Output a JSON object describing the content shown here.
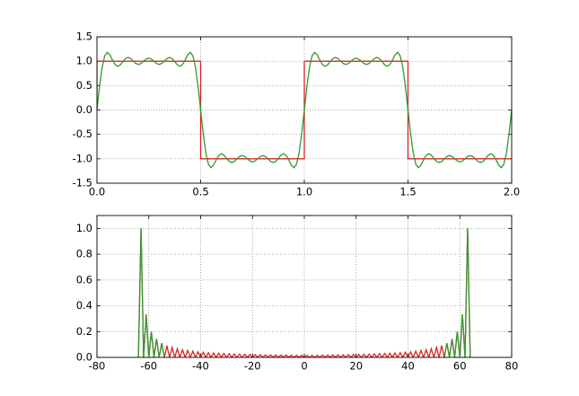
{
  "chart_data": [
    {
      "type": "line",
      "xlim": [
        0,
        2
      ],
      "ylim": [
        -1.5,
        1.5
      ],
      "xticks": [
        {
          "value": 0,
          "label": "0.0"
        },
        0.5,
        {
          "value": 1,
          "label": "1.0"
        },
        1.5,
        {
          "value": 2,
          "label": "2.0"
        }
      ],
      "yticks": [
        -1.5,
        {
          "value": -1,
          "label": "-1.0"
        },
        -0.5,
        {
          "value": 0,
          "label": "0.0"
        },
        0.5,
        {
          "value": 1,
          "label": "1.0"
        },
        1.5
      ],
      "grid": true,
      "series": [
        {
          "color": "#dd2222",
          "x": [
            0,
            0,
            0.5,
            0.5,
            1,
            1,
            1.5,
            1.5,
            2
          ],
          "values": [
            0,
            1,
            1,
            -1,
            -1,
            1,
            1,
            -1,
            -1
          ]
        },
        {
          "color": "#339933",
          "x": [
            0,
            0.0125,
            0.025,
            0.0375,
            0.05,
            0.0625,
            0.075,
            0.0875,
            0.1,
            0.1125,
            0.125,
            0.1375,
            0.15,
            0.1625,
            0.175,
            0.1875,
            0.2,
            0.2125,
            0.225,
            0.2375,
            0.25,
            0.2625,
            0.275,
            0.2875,
            0.3,
            0.3125,
            0.325,
            0.3375,
            0.35,
            0.3625,
            0.375,
            0.3875,
            0.4,
            0.4125,
            0.425,
            0.4375,
            0.45,
            0.4625,
            0.475,
            0.4875,
            0.5,
            0.5125,
            0.525,
            0.5375,
            0.55,
            0.5625,
            0.575,
            0.5875,
            0.6,
            0.6125,
            0.625,
            0.6375,
            0.65,
            0.6625,
            0.675,
            0.6875,
            0.7,
            0.7125,
            0.725,
            0.7375,
            0.75,
            0.7625,
            0.775,
            0.7875,
            0.8,
            0.8125,
            0.825,
            0.8375,
            0.85,
            0.8625,
            0.875,
            0.8875,
            0.9,
            0.9125,
            0.925,
            0.9375,
            0.95,
            0.9625,
            0.975,
            0.9875,
            1,
            1.0125,
            1.025,
            1.0375,
            1.05,
            1.0625,
            1.075,
            1.0875,
            1.1,
            1.1125,
            1.125,
            1.1375,
            1.15,
            1.1625,
            1.175,
            1.1875,
            1.2,
            1.2125,
            1.225,
            1.2375,
            1.25,
            1.2625,
            1.275,
            1.2875,
            1.3,
            1.3125,
            1.325,
            1.3375,
            1.35,
            1.3625,
            1.375,
            1.3875,
            1.4,
            1.4125,
            1.425,
            1.4375,
            1.45,
            1.4625,
            1.475,
            1.4875,
            1.5,
            1.5125,
            1.525,
            1.5375,
            1.55,
            1.5625,
            1.575,
            1.5875,
            1.6,
            1.6125,
            1.625,
            1.6375,
            1.65,
            1.6625,
            1.675,
            1.6875,
            1.7,
            1.7125,
            1.725,
            1.7375,
            1.75,
            1.7625,
            1.775,
            1.7875,
            1.8,
            1.8125,
            1.825,
            1.8375,
            1.85,
            1.8625,
            1.875,
            1.8875,
            1.9,
            1.9125,
            1.925,
            1.9375,
            1.95,
            1.9625,
            1.975,
            1.9875,
            2
          ],
          "values": [
            0,
            0.483,
            0.874,
            1.11,
            1.182,
            1.13,
            1.023,
            0.93,
            0.896,
            0.925,
            0.992,
            1.053,
            1.077,
            1.055,
            1.004,
            0.954,
            0.934,
            0.953,
            0.999,
            1.044,
            1.063,
            1.044,
            0.999,
            0.953,
            0.934,
            0.954,
            1.004,
            1.055,
            1.077,
            1.053,
            0.992,
            0.925,
            0.896,
            0.93,
            1.023,
            1.13,
            1.182,
            1.11,
            0.874,
            0.483,
            0,
            -0.483,
            -0.874,
            -1.11,
            -1.182,
            -1.13,
            -1.023,
            -0.93,
            -0.896,
            -0.925,
            -0.992,
            -1.053,
            -1.077,
            -1.055,
            -1.004,
            -0.954,
            -0.934,
            -0.953,
            -0.999,
            -1.044,
            -1.063,
            -1.044,
            -0.999,
            -0.953,
            -0.934,
            -0.954,
            -1.004,
            -1.055,
            -1.077,
            -1.053,
            -0.992,
            -0.925,
            -0.896,
            -0.93,
            -1.023,
            -1.13,
            -1.182,
            -1.11,
            -0.874,
            -0.483,
            0,
            0.483,
            0.874,
            1.11,
            1.182,
            1.13,
            1.023,
            0.93,
            0.896,
            0.925,
            0.992,
            1.053,
            1.077,
            1.055,
            1.004,
            0.954,
            0.934,
            0.953,
            0.999,
            1.044,
            1.063,
            1.044,
            0.999,
            0.953,
            0.934,
            0.954,
            1.004,
            1.055,
            1.077,
            1.053,
            0.992,
            0.925,
            0.896,
            0.93,
            1.023,
            1.13,
            1.182,
            1.11,
            0.874,
            0.483,
            0,
            -0.483,
            -0.874,
            -1.11,
            -1.182,
            -1.13,
            -1.023,
            -0.93,
            -0.896,
            -0.925,
            -0.992,
            -1.053,
            -1.077,
            -1.055,
            -1.004,
            -0.954,
            -0.934,
            -0.953,
            -0.999,
            -1.044,
            -1.063,
            -1.044,
            -0.999,
            -0.953,
            -0.934,
            -0.954,
            -1.004,
            -1.055,
            -1.077,
            -1.053,
            -0.992,
            -0.925,
            -0.896,
            -0.93,
            -1.023,
            -1.13,
            -1.182,
            -1.11,
            -0.874,
            -0.483,
            0
          ]
        }
      ]
    },
    {
      "type": "line",
      "xlim": [
        -80,
        80
      ],
      "ylim": [
        0,
        1.1
      ],
      "xticks": [
        -80,
        -60,
        -40,
        -20,
        0,
        20,
        40,
        60,
        80
      ],
      "yticks": [
        {
          "value": 0,
          "label": "0.0"
        },
        0.2,
        0.4,
        0.6,
        0.8,
        {
          "value": 1,
          "label": "1.0"
        }
      ],
      "grid": true,
      "series": [
        {
          "color": "#dd2222",
          "x": [
            -64,
            -63,
            -62,
            -61,
            -60,
            -59,
            -58,
            -57,
            -56,
            -55,
            -54,
            -53,
            -52,
            -51,
            -50,
            -49,
            -48,
            -47,
            -46,
            -45,
            -44,
            -43,
            -42,
            -41,
            -40,
            -39,
            -38,
            -37,
            -36,
            -35,
            -34,
            -33,
            -32,
            -31,
            -30,
            -29,
            -28,
            -27,
            -26,
            -25,
            -24,
            -23,
            -22,
            -21,
            -20,
            -19,
            -18,
            -17,
            -16,
            -15,
            -14,
            -13,
            -12,
            -11,
            -10,
            -9,
            -8,
            -7,
            -6,
            -5,
            -4,
            -3,
            -2,
            -1,
            0,
            1,
            2,
            3,
            4,
            5,
            6,
            7,
            8,
            9,
            10,
            11,
            12,
            13,
            14,
            15,
            16,
            17,
            18,
            19,
            20,
            21,
            22,
            23,
            24,
            25,
            26,
            27,
            28,
            29,
            30,
            31,
            32,
            33,
            34,
            35,
            36,
            37,
            38,
            39,
            40,
            41,
            42,
            43,
            44,
            45,
            46,
            47,
            48,
            49,
            50,
            51,
            52,
            53,
            54,
            55,
            56,
            57,
            58,
            59,
            60,
            61,
            62,
            63,
            64
          ],
          "values": [
            0,
            1,
            0,
            0.333,
            0,
            0.2,
            0,
            0.143,
            0,
            0.111,
            0,
            0.091,
            0,
            0.077,
            0,
            0.067,
            0,
            0.059,
            0,
            0.053,
            0,
            0.048,
            0,
            0.043,
            0,
            0.04,
            0,
            0.037,
            0,
            0.034,
            0,
            0.032,
            0,
            0.03,
            0,
            0.029,
            0,
            0.027,
            0,
            0.026,
            0,
            0.024,
            0,
            0.023,
            0,
            0.022,
            0,
            0.021,
            0,
            0.02,
            0,
            0.02,
            0,
            0.019,
            0,
            0.018,
            0,
            0.018,
            0,
            0.017,
            0,
            0.016,
            0,
            0.016,
            0,
            0.016,
            0,
            0.016,
            0,
            0.017,
            0,
            0.018,
            0,
            0.018,
            0,
            0.019,
            0,
            0.02,
            0,
            0.02,
            0,
            0.021,
            0,
            0.022,
            0,
            0.023,
            0,
            0.024,
            0,
            0.026,
            0,
            0.027,
            0,
            0.029,
            0,
            0.03,
            0,
            0.032,
            0,
            0.034,
            0,
            0.037,
            0,
            0.04,
            0,
            0.043,
            0,
            0.048,
            0,
            0.053,
            0,
            0.059,
            0,
            0.067,
            0,
            0.077,
            0,
            0.091,
            0,
            0.111,
            0,
            0.143,
            0,
            0.2,
            0,
            0.333,
            0,
            1,
            0
          ]
        },
        {
          "color": "#339933",
          "x": [
            -64,
            -63,
            -62,
            -61,
            -60,
            -59,
            -58,
            -57,
            -56,
            -55,
            -54,
            0,
            54,
            55,
            56,
            57,
            58,
            59,
            60,
            61,
            62,
            63,
            64
          ],
          "values": [
            0,
            1,
            0,
            0.333,
            0,
            0.2,
            0,
            0.143,
            0,
            0.111,
            0,
            null,
            0,
            0.111,
            0,
            0.143,
            0,
            0.2,
            0,
            0.333,
            0,
            1,
            0
          ]
        }
      ]
    }
  ]
}
